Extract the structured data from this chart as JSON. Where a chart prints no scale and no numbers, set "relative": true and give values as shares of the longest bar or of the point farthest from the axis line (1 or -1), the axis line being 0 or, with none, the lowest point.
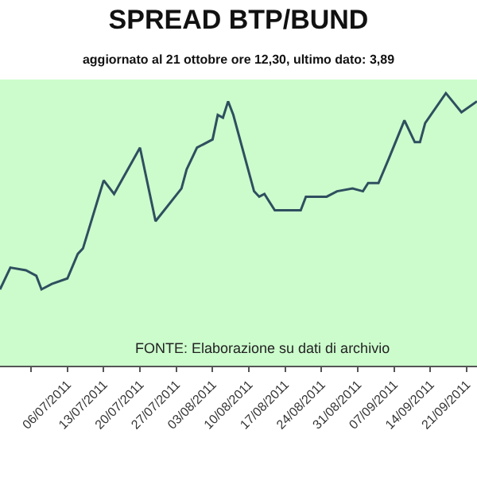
{
  "chart_data": {
    "type": "line",
    "title": "SPREAD BTP/BUND",
    "subtitle": "aggiornato al 21 ottobre ore 12,30, ultimo dato: 3,89",
    "relative": true,
    "color": "#2f4f5f",
    "grid": false,
    "legend": false,
    "marker": "none",
    "x": [
      "2011-06-23",
      "2011-06-25",
      "2011-06-28",
      "2011-06-30",
      "2011-07-01",
      "2011-07-03",
      "2011-07-06",
      "2011-07-08",
      "2011-07-09",
      "2011-07-13",
      "2011-07-15",
      "2011-07-20",
      "2011-07-23",
      "2011-07-28",
      "2011-07-29",
      "2011-07-31",
      "2011-08-03",
      "2011-08-04",
      "2011-08-05",
      "2011-08-06",
      "2011-08-07",
      "2011-08-11",
      "2011-08-12",
      "2011-08-13",
      "2011-08-15",
      "2011-08-20",
      "2011-08-21",
      "2011-08-25",
      "2011-08-27",
      "2011-08-30",
      "2011-09-01",
      "2011-09-02",
      "2011-09-04",
      "2011-09-06",
      "2011-09-09",
      "2011-09-11",
      "2011-09-12",
      "2011-09-13",
      "2011-09-17",
      "2011-09-20",
      "2011-09-23"
    ],
    "values": [
      0.28,
      0.36,
      0.35,
      0.33,
      0.28,
      0.3,
      0.32,
      0.41,
      0.43,
      0.68,
      0.63,
      0.8,
      0.53,
      0.65,
      0.72,
      0.8,
      0.83,
      0.92,
      0.91,
      0.97,
      0.92,
      0.64,
      0.62,
      0.63,
      0.57,
      0.57,
      0.62,
      0.62,
      0.64,
      0.65,
      0.64,
      0.67,
      0.67,
      0.76,
      0.9,
      0.82,
      0.82,
      0.89,
      1.0,
      0.93,
      0.97
    ],
    "xlim": [
      "2011-06-23",
      "2011-09-23"
    ],
    "xticks": [
      {
        "value": "2011-06-29",
        "label": null
      },
      {
        "value": "2011-07-06",
        "label": "06/07/2011"
      },
      {
        "value": "2011-07-13",
        "label": "13/07/2011"
      },
      {
        "value": "2011-07-20",
        "label": "20/07/2011"
      },
      {
        "value": "2011-07-27",
        "label": "27/07/2011"
      },
      {
        "value": "2011-08-03",
        "label": "03/08/2011"
      },
      {
        "value": "2011-08-10",
        "label": "10/08/2011"
      },
      {
        "value": "2011-08-17",
        "label": "17/08/2011"
      },
      {
        "value": "2011-08-24",
        "label": "24/08/2011"
      },
      {
        "value": "2011-08-31",
        "label": "31/08/2011"
      },
      {
        "value": "2011-09-07",
        "label": "07/09/2011"
      },
      {
        "value": "2011-09-14",
        "label": "14/09/2011"
      },
      {
        "value": "2011-09-21",
        "label": "21/09/2011"
      }
    ],
    "tick_labels": "x",
    "annotations": [
      "FONTE: Elaborazione su dati di archivio"
    ]
  }
}
